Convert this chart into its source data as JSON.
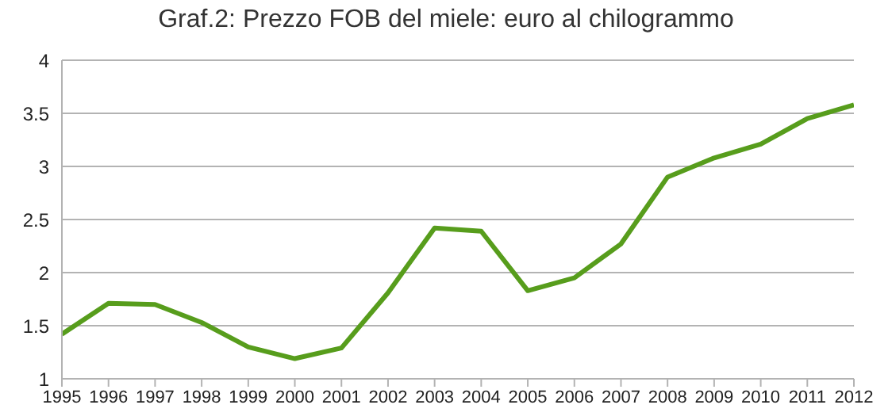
{
  "chart_data": {
    "type": "line",
    "title": "Graf.2: Prezzo FOB del miele: euro al chilogrammo",
    "x": [
      1995,
      1996,
      1997,
      1998,
      1999,
      2000,
      2001,
      2002,
      2003,
      2004,
      2005,
      2006,
      2007,
      2008,
      2009,
      2010,
      2011,
      2012
    ],
    "series": [
      {
        "color": "#579d1c",
        "values": [
          1.42,
          1.71,
          1.7,
          1.53,
          1.3,
          1.19,
          1.29,
          1.81,
          2.42,
          2.39,
          1.83,
          1.95,
          2.27,
          2.9,
          3.08,
          3.21,
          3.45,
          3.58
        ]
      }
    ],
    "xlim": [
      1995,
      2012
    ],
    "xticks": [
      1995,
      1996,
      1997,
      1998,
      1999,
      2000,
      2001,
      2002,
      2003,
      2004,
      2005,
      2006,
      2007,
      2008,
      2009,
      2010,
      2011,
      2012
    ],
    "ylim": [
      1,
      4
    ],
    "yticks": [
      1,
      1.5,
      2,
      2.5,
      3,
      3.5,
      4
    ],
    "grid": "y",
    "legend": false,
    "marker": "none",
    "line_style": "solid"
  }
}
